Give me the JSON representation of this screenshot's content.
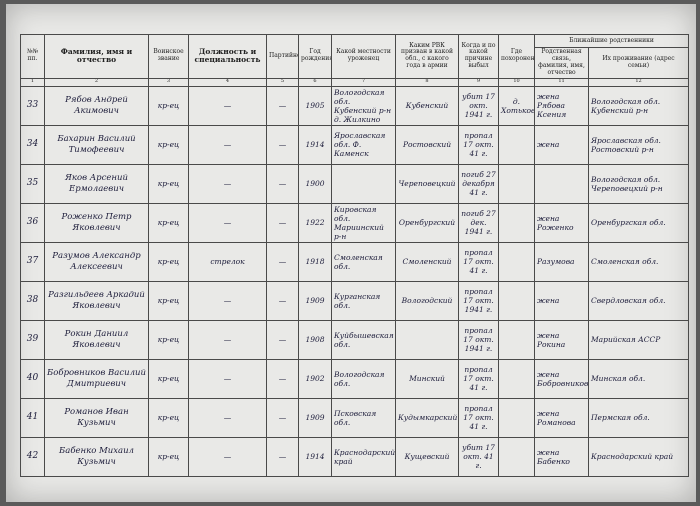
{
  "header": {
    "columns": [
      "№№ пп.",
      "Фамилия, имя и отчество",
      "Воинское звание",
      "Должность и специальность",
      "Партийность",
      "Год рождения",
      "Какой местности уроженец",
      "Каким РВК призван в какой обл., с какого года в армии",
      "Когда и по какой причине выбыл",
      "Где похоронен"
    ],
    "relatives": "Ближайшие родственники",
    "relatives_sub": [
      "Родственная связь, фамилия, имя, отчество",
      "Их проживание (адрес семьи)"
    ],
    "column_numbers": [
      "1",
      "2",
      "3",
      "4",
      "5",
      "6",
      "7",
      "8",
      "9",
      "10",
      "11",
      "12"
    ]
  },
  "table": {
    "rows": [
      [
        "33",
        "Рябов Андрей Акимович",
        "кр-ец",
        "—",
        "—",
        "1905",
        "Вологодская обл. Кубенский р-н д. Жилкино",
        "Кубенский",
        "убит 17 окт. 1941 г.",
        "д. Хотьково",
        "жена Рябова Ксения",
        "Вологодская обл. Кубенский р-н"
      ],
      [
        "34",
        "Бахарин Василий Тимофеевич",
        "кр-ец",
        "—",
        "—",
        "1914",
        "Ярославская обл. Ф. Каменск",
        "Ростовский",
        "пропал 17 окт. 41 г.",
        "",
        "жена",
        "Ярославская обл. Ростовский р-н"
      ],
      [
        "35",
        "Яков Арсений Ермолаевич",
        "кр-ец",
        "—",
        "—",
        "1900",
        "",
        "Череповецкий",
        "погиб 27 декабря 41 г.",
        "",
        "",
        "Вологодская обл. Череповецкий р-н"
      ],
      [
        "36",
        "Роженко Петр Яковлевич",
        "кр-ец",
        "—",
        "—",
        "1922",
        "Кировская обл. Мариинский р-н",
        "Оренбургский",
        "погиб 27 дек. 1941 г.",
        "",
        "жена Роженко",
        "Оренбургская обл."
      ],
      [
        "37",
        "Разумов Александр Алексеевич",
        "кр-ец",
        "стрелок",
        "—",
        "1918",
        "Смоленская обл.",
        "Смоленский",
        "пропал 17 окт. 41 г.",
        "",
        "Разумова",
        "Смоленская обл."
      ],
      [
        "38",
        "Разгильдеев Аркадий Яковлевич",
        "кр-ец",
        "—",
        "—",
        "1909",
        "Курганская обл.",
        "Вологодский",
        "пропал 17 окт. 1941 г.",
        "",
        "жена",
        "Свердловская обл."
      ],
      [
        "39",
        "Рокин Даниил Яковлевич",
        "кр-ец",
        "—",
        "—",
        "1908",
        "Куйбышевская обл.",
        "",
        "пропал 17 окт. 1941 г.",
        "",
        "жена Рокина",
        "Марийская АССР"
      ],
      [
        "40",
        "Бобровников Василий Дмитриевич",
        "кр-ец",
        "—",
        "—",
        "1902",
        "Вологодская обл.",
        "Минский",
        "пропал 17 окт. 41 г.",
        "",
        "жена Бобровникова",
        "Минская обл."
      ],
      [
        "41",
        "Романов Иван Кузьмич",
        "кр-ец",
        "—",
        "—",
        "1909",
        "Псковская обл.",
        "Кудымкарский",
        "пропал 17 окт. 41 г.",
        "",
        "жена Романова",
        "Пермская обл."
      ],
      [
        "42",
        "Бабенко Михаил Кузьмич",
        "кр-ец",
        "—",
        "—",
        "1914",
        "Краснодарский край",
        "Кущевский",
        "убит 17 окт. 41 г.",
        "",
        "жена Бабенко",
        "Краснодарский край"
      ]
    ]
  }
}
